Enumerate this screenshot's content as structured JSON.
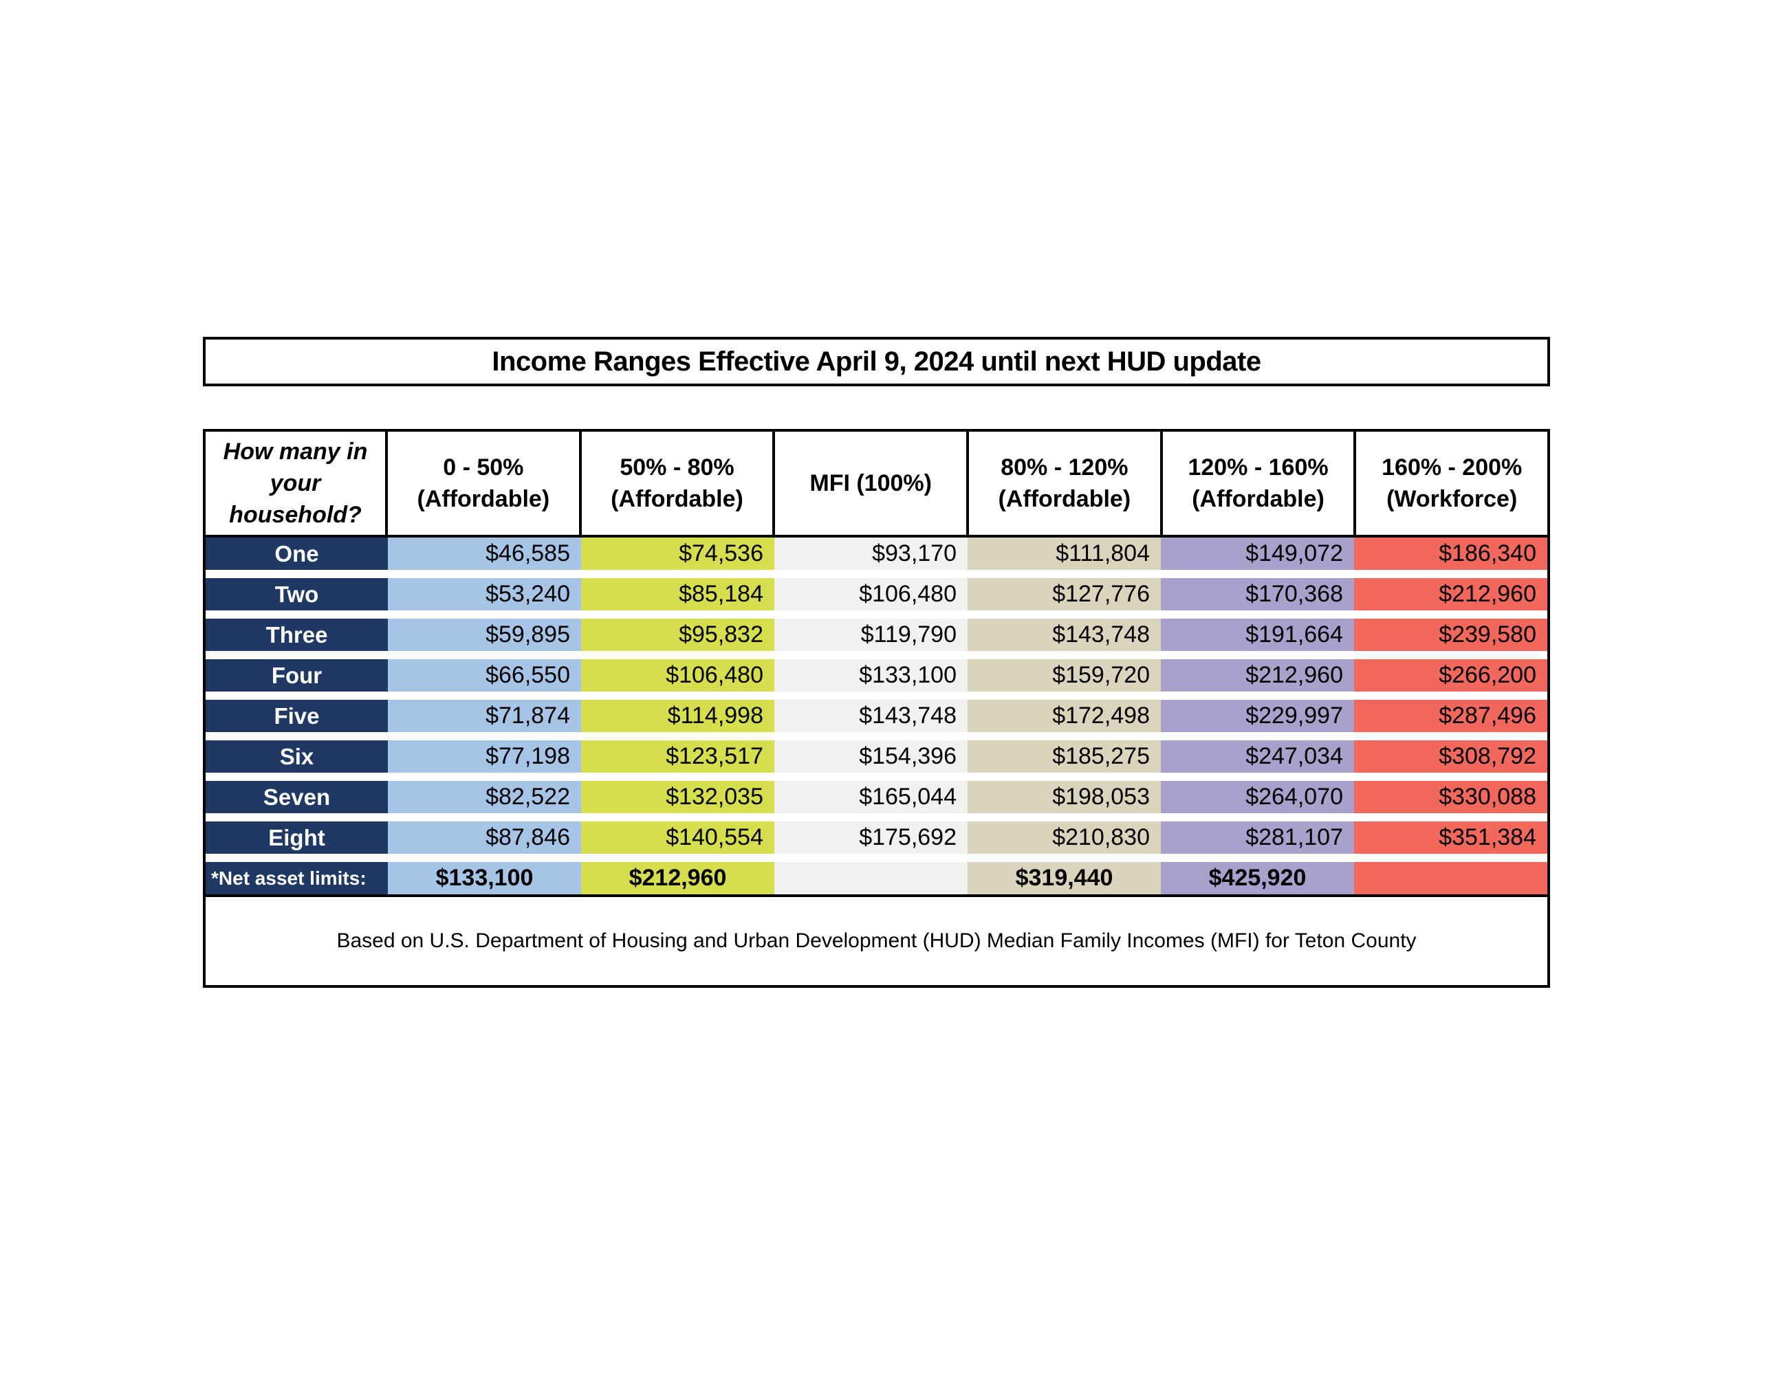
{
  "title": "Income Ranges Effective April 9, 2024 until next HUD update",
  "table": {
    "header": {
      "household_lines": [
        "How many in",
        "your",
        "household?"
      ],
      "columns": [
        {
          "range": "0 - 50%",
          "category": "(Affordable)"
        },
        {
          "range": "50% - 80%",
          "category": "(Affordable)"
        },
        {
          "range": "MFI (100%)",
          "category": ""
        },
        {
          "range": "80% - 120%",
          "category": "(Affordable)"
        },
        {
          "range": "120% - 160%",
          "category": "(Affordable)"
        },
        {
          "range": "160% - 200%",
          "category": "(Workforce)"
        }
      ]
    },
    "rows": [
      {
        "label": "One",
        "values": [
          "$46,585",
          "$74,536",
          "$93,170",
          "$111,804",
          "$149,072",
          "$186,340"
        ]
      },
      {
        "label": "Two",
        "values": [
          "$53,240",
          "$85,184",
          "$106,480",
          "$127,776",
          "$170,368",
          "$212,960"
        ]
      },
      {
        "label": "Three",
        "values": [
          "$59,895",
          "$95,832",
          "$119,790",
          "$143,748",
          "$191,664",
          "$239,580"
        ]
      },
      {
        "label": "Four",
        "values": [
          "$66,550",
          "$106,480",
          "$133,100",
          "$159,720",
          "$212,960",
          "$266,200"
        ]
      },
      {
        "label": "Five",
        "values": [
          "$71,874",
          "$114,998",
          "$143,748",
          "$172,498",
          "$229,997",
          "$287,496"
        ]
      },
      {
        "label": "Six",
        "values": [
          "$77,198",
          "$123,517",
          "$154,396",
          "$185,275",
          "$247,034",
          "$308,792"
        ]
      },
      {
        "label": "Seven",
        "values": [
          "$82,522",
          "$132,035",
          "$165,044",
          "$198,053",
          "$264,070",
          "$330,088"
        ]
      },
      {
        "label": "Eight",
        "values": [
          "$87,846",
          "$140,554",
          "$175,692",
          "$210,830",
          "$281,107",
          "$351,384"
        ]
      }
    ],
    "net_asset_row": {
      "label": "*Net asset limits:",
      "values": [
        "$133,100",
        "$212,960",
        "",
        "$319,440",
        "$425,920",
        ""
      ]
    },
    "footnote": "Based on U.S. Department of Housing and Urban Development (HUD) Median Family Incomes (MFI) for Teton County"
  },
  "colors": {
    "navy": "#1F3864",
    "lightBlue": "#A6C5E6",
    "yellowGreen": "#D7DE4E",
    "lightGray": "#F1F1EF",
    "tan": "#DAD4BD",
    "purple": "#A9A0CB",
    "red": "#F2685C"
  }
}
